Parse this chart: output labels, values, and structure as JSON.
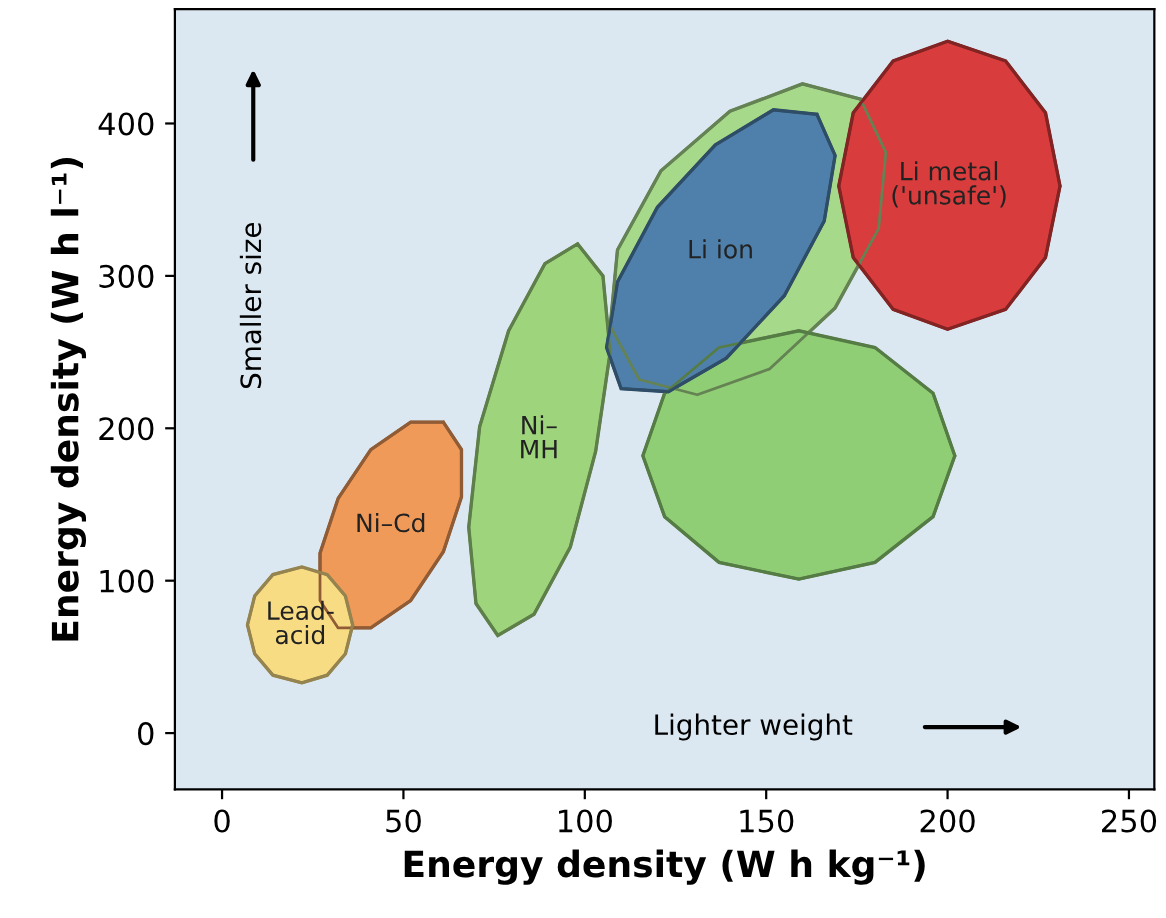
{
  "chart_data": {
    "type": "area",
    "xlabel": "Energy density (W h kg⁻¹)",
    "ylabel": "Energy density (W h l⁻¹)",
    "xlim": [
      -13,
      257
    ],
    "ylim": [
      -37,
      475
    ],
    "xticks": [
      0,
      50,
      100,
      150,
      200,
      250
    ],
    "yticks": [
      0,
      100,
      200,
      300,
      400
    ],
    "legend": false,
    "annotations": [
      "Smaller size",
      "Lighter weight"
    ],
    "series": [
      {
        "name": "Ni–Cd",
        "color": "#f09a5a",
        "x": [
          61,
          66,
          66,
          61,
          52,
          41,
          32,
          27,
          27,
          32,
          41,
          52
        ],
        "values": [
          204,
          186,
          155,
          119,
          87,
          69,
          69,
          87,
          118,
          154,
          186,
          204
        ]
      },
      {
        "name": "Lead-\nacid",
        "color": "#f8dc84",
        "x": [
          36,
          34,
          29,
          22,
          14,
          9,
          7,
          9,
          14,
          22,
          29,
          34
        ],
        "values": [
          71,
          90,
          104,
          109,
          104,
          90,
          71,
          52,
          38,
          33,
          38,
          52
        ]
      },
      {
        "name": "Ni–\nMH",
        "color": "#9ed47c",
        "x": [
          98,
          105,
          107,
          103,
          96,
          86,
          76,
          70,
          68,
          71,
          79,
          89
        ],
        "values": [
          321,
          300,
          250,
          185,
          122,
          78,
          64,
          85,
          135,
          201,
          264,
          308
        ]
      },
      {
        "color": "#a6d98a",
        "x": [
          176,
          183,
          181,
          169,
          151,
          131,
          115,
          107,
          109,
          121,
          140,
          160
        ],
        "values": [
          416,
          381,
          331,
          279,
          239,
          222,
          232,
          267,
          317,
          369,
          408,
          426
        ]
      },
      {
        "color": "#8fce74",
        "x": [
          202,
          196,
          180,
          159,
          137,
          122,
          116,
          122,
          137,
          159,
          180,
          196
        ],
        "values": [
          182,
          223,
          253,
          264,
          253,
          223,
          182,
          142,
          112,
          101,
          112,
          142
        ]
      },
      {
        "name": "Li ion",
        "color": "#4f80ab",
        "x": [
          164,
          169,
          166,
          155,
          139,
          123,
          110,
          106,
          109,
          120,
          136,
          152
        ],
        "values": [
          406,
          379,
          336,
          287,
          246,
          224,
          226,
          253,
          296,
          345,
          386,
          409
        ]
      },
      {
        "name": "Li metal\n('unsafe')",
        "color": "#d83c3c",
        "x": [
          231,
          227,
          216,
          200,
          185,
          174,
          170,
          174,
          185,
          200,
          216,
          227
        ],
        "values": [
          359,
          407,
          441,
          454,
          441,
          407,
          359,
          312,
          278,
          265,
          278,
          312
        ]
      }
    ]
  }
}
